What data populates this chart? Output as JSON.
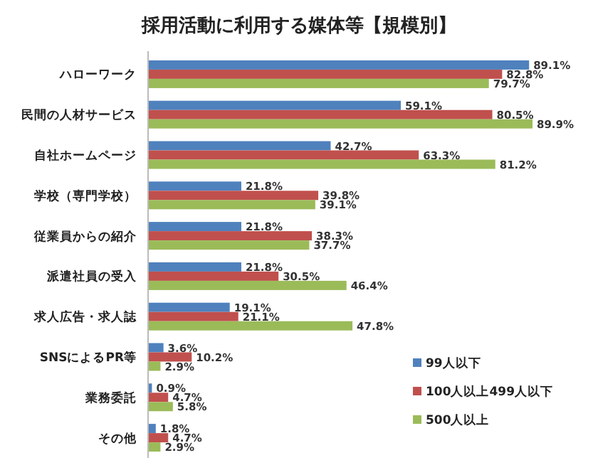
{
  "chart_data": {
    "type": "bar",
    "orientation": "horizontal",
    "title": "採用活動に利用する媒体等【規模別】",
    "legend": "bottom right",
    "categories": [
      "ハローワーク",
      "民間の人材サービス",
      "自社ホームページ",
      "学校（専門学校）",
      "従業員からの紹介",
      "派遣社員の受入",
      "求人広告・求人誌",
      "SNSによるPR等",
      "業務委託",
      "その他"
    ],
    "series": [
      {
        "name": "99人以下",
        "color": "#4f81bd",
        "values": [
          89.1,
          59.1,
          42.7,
          21.8,
          21.8,
          21.8,
          19.1,
          3.6,
          0.9,
          1.8
        ],
        "value_labels": [
          "89.1%",
          "59.1%",
          "42.7%",
          "21.8%",
          "21.8%",
          "21.8%",
          "19.1%",
          "3.6%",
          "0.9%",
          "1.8%"
        ]
      },
      {
        "name": "100人以上499人以下",
        "color": "#c0504d",
        "values": [
          82.8,
          80.5,
          63.3,
          39.8,
          38.3,
          30.5,
          21.1,
          10.2,
          4.7,
          4.7
        ],
        "value_labels": [
          "82.8%",
          "80.5%",
          "63.3%",
          "39.8%",
          "38.3%",
          "30.5%",
          "21.1%",
          "10.2%",
          "4.7%",
          "4.7%"
        ]
      },
      {
        "name": "500人以上",
        "color": "#9bbb59",
        "values": [
          79.7,
          89.9,
          81.2,
          39.1,
          37.7,
          46.4,
          47.8,
          2.9,
          5.8,
          2.9
        ],
        "value_labels": [
          "79.7%",
          "89.9%",
          "81.2%",
          "39.1%",
          "37.7%",
          "46.4%",
          "47.8%",
          "2.9%",
          "5.8%",
          "2.9%"
        ]
      }
    ]
  }
}
